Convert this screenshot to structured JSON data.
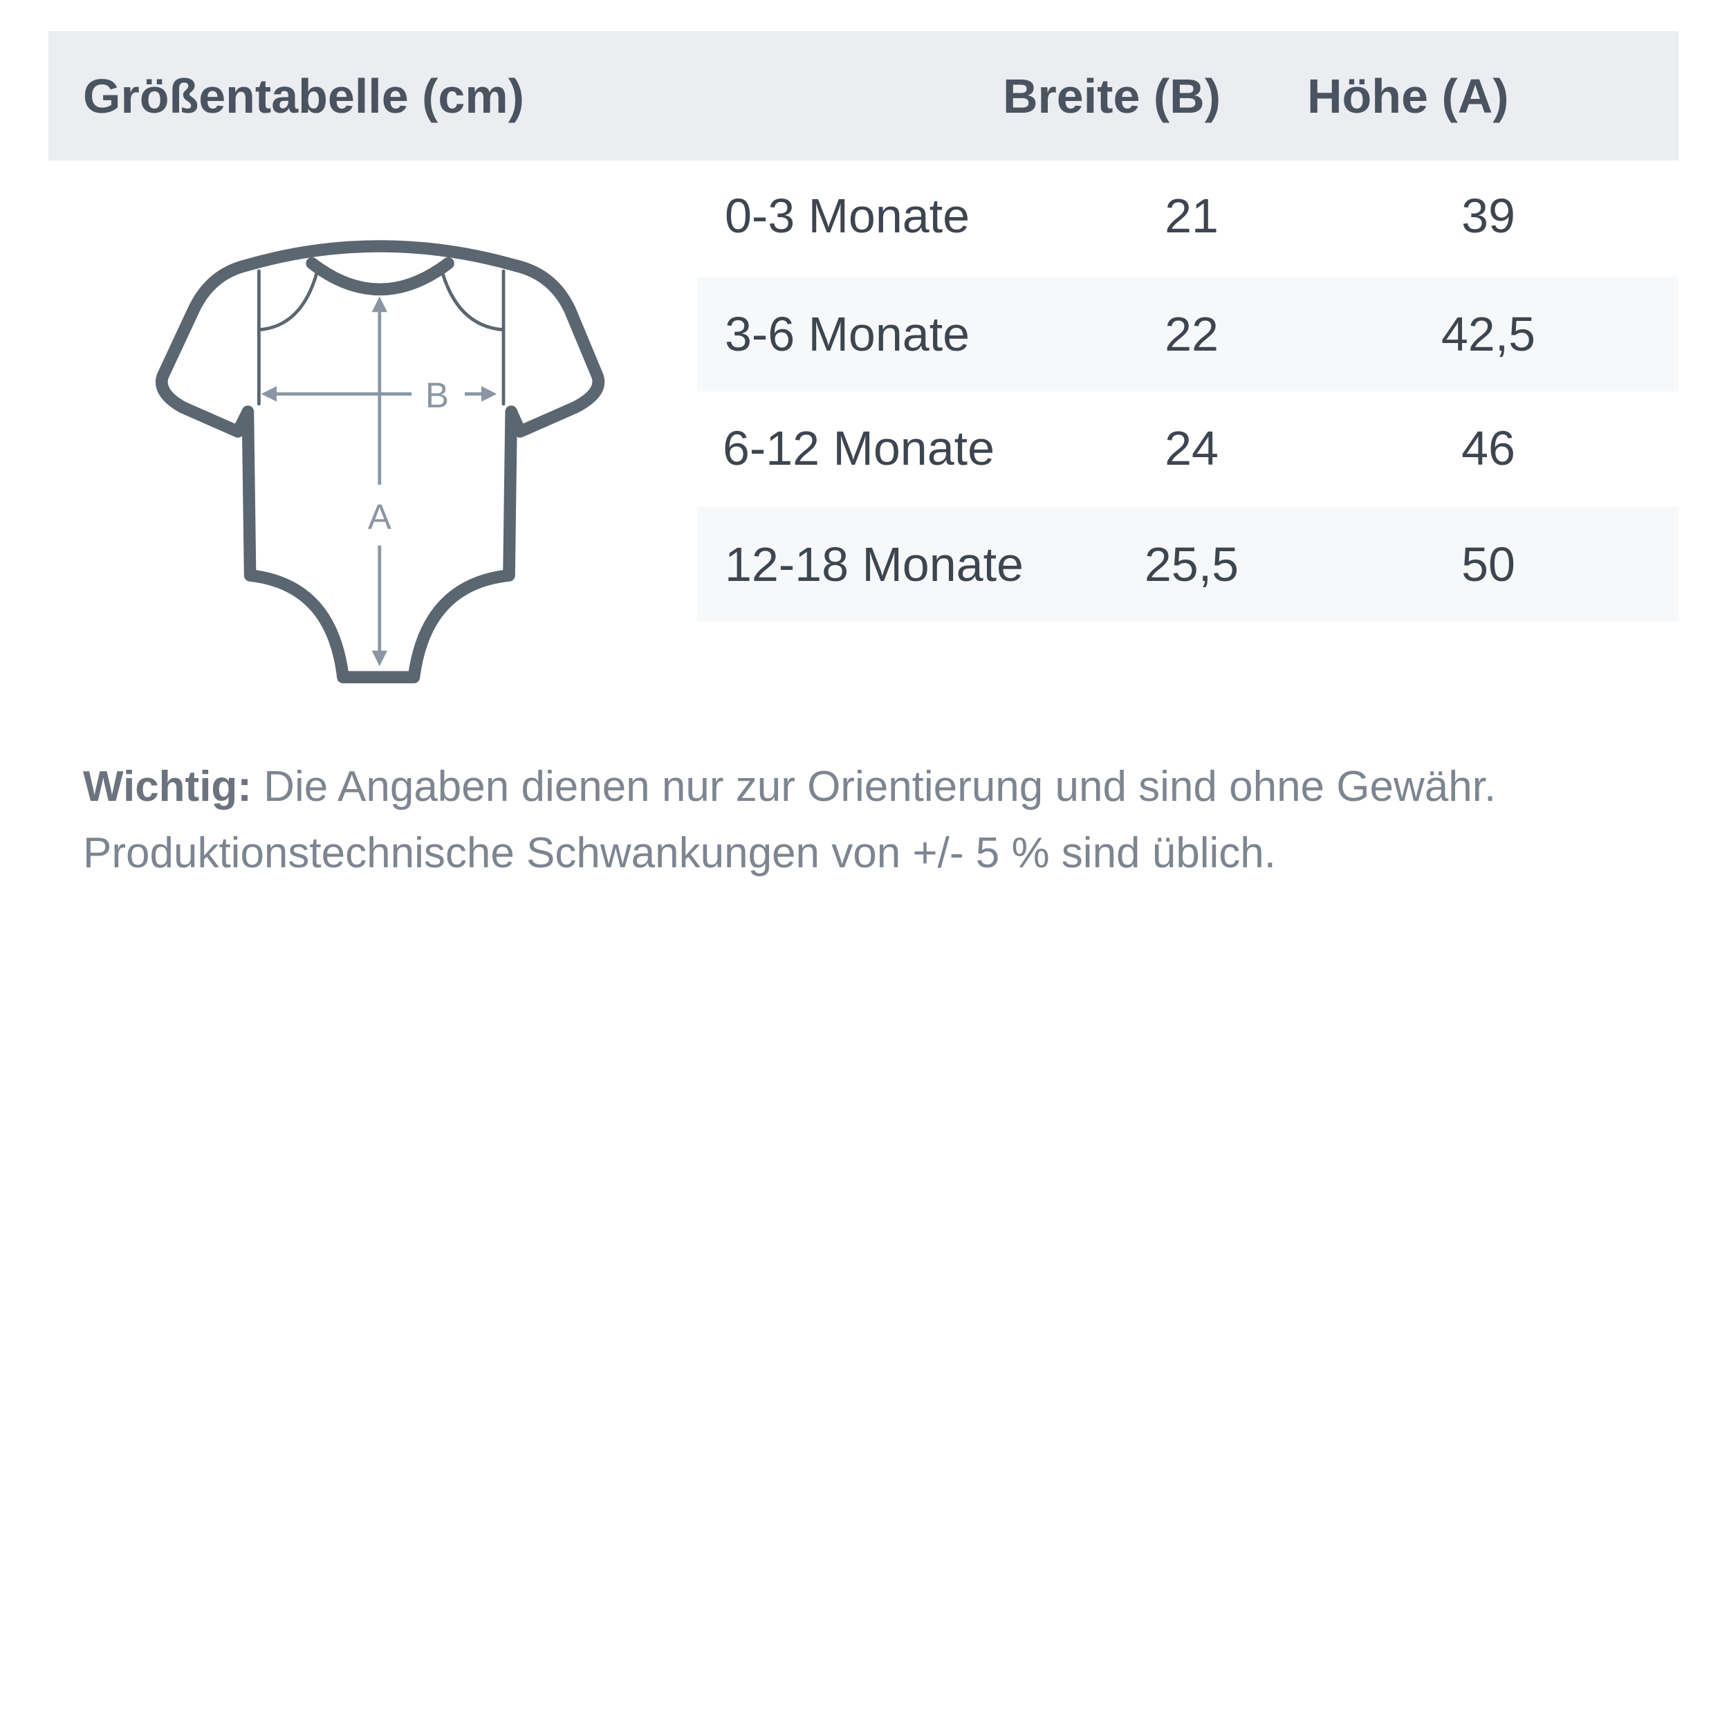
{
  "header": {
    "title": "Größentabelle (cm)",
    "col_width": "Breite (B)",
    "col_height": "Höhe (A)"
  },
  "rows": [
    {
      "size": "0-3 Monate",
      "width": "21",
      "height": "39"
    },
    {
      "size": "3-6 Monate",
      "width": "22",
      "height": "42,5"
    },
    {
      "size": "6-12 Monate",
      "width": "24",
      "height": "46"
    },
    {
      "size": "12-18 Monate",
      "width": "25,5",
      "height": "50"
    }
  ],
  "diagram": {
    "label_width": "B",
    "label_height": "A",
    "icon": "baby-bodysuit-icon"
  },
  "note": {
    "bold": "Wichtig:",
    "line1": " Die Angaben dienen nur zur Orientierung und sind ohne Gewähr.",
    "line2": "Produktionstechnische Schwankungen von +/- 5 % sind üblich."
  },
  "colors": {
    "header_bg": "#ebedf1",
    "row_alt_bg": "#f7f8fa",
    "outline": "#5a6670",
    "arrow": "#8a96a3"
  }
}
